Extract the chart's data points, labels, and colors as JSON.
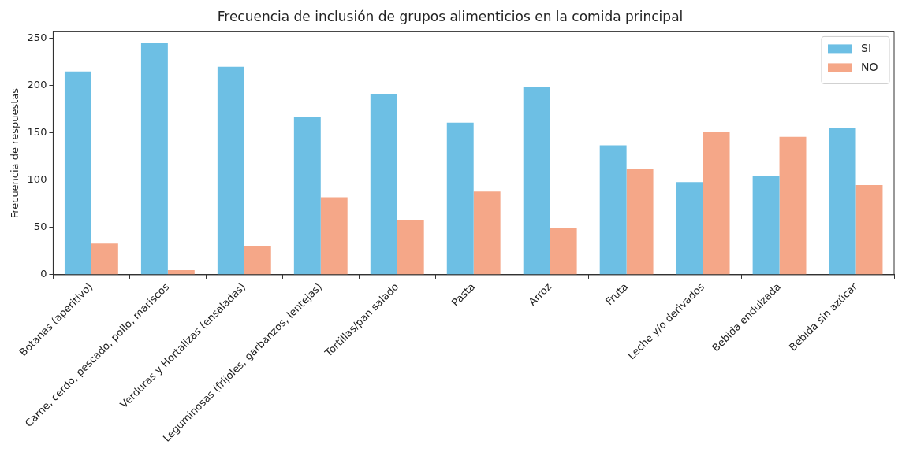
{
  "chart_data": {
    "type": "bar",
    "title": "Frecuencia de inclusión de grupos alimenticios en la comida principal",
    "ylabel": "Frecuencia de respuestas",
    "categories": [
      "Botanas (aperitivo)",
      "Carne, cerdo, pescado, pollo, mariscos",
      "Verduras y Hortalizas (ensaladas)",
      "Leguminosas (frijoles, garbanzos, lentejas)",
      "Tortillas/pan salado",
      "Pasta",
      "Arroz",
      "Fruta",
      "Leche y/o derivados",
      "Bebida endulzada",
      "Bebida sin azúcar"
    ],
    "series": [
      {
        "name": "SI",
        "color": "#6dbfe4",
        "values": [
          215,
          245,
          220,
          167,
          191,
          161,
          199,
          137,
          98,
          104,
          155
        ]
      },
      {
        "name": "NO",
        "color": "#f5a788",
        "values": [
          33,
          5,
          30,
          82,
          58,
          88,
          50,
          112,
          151,
          146,
          95
        ]
      }
    ],
    "ylim": [
      0,
      257
    ],
    "yticks": [
      0,
      50,
      100,
      150,
      200,
      250
    ],
    "grid": false,
    "legend": "top right"
  }
}
